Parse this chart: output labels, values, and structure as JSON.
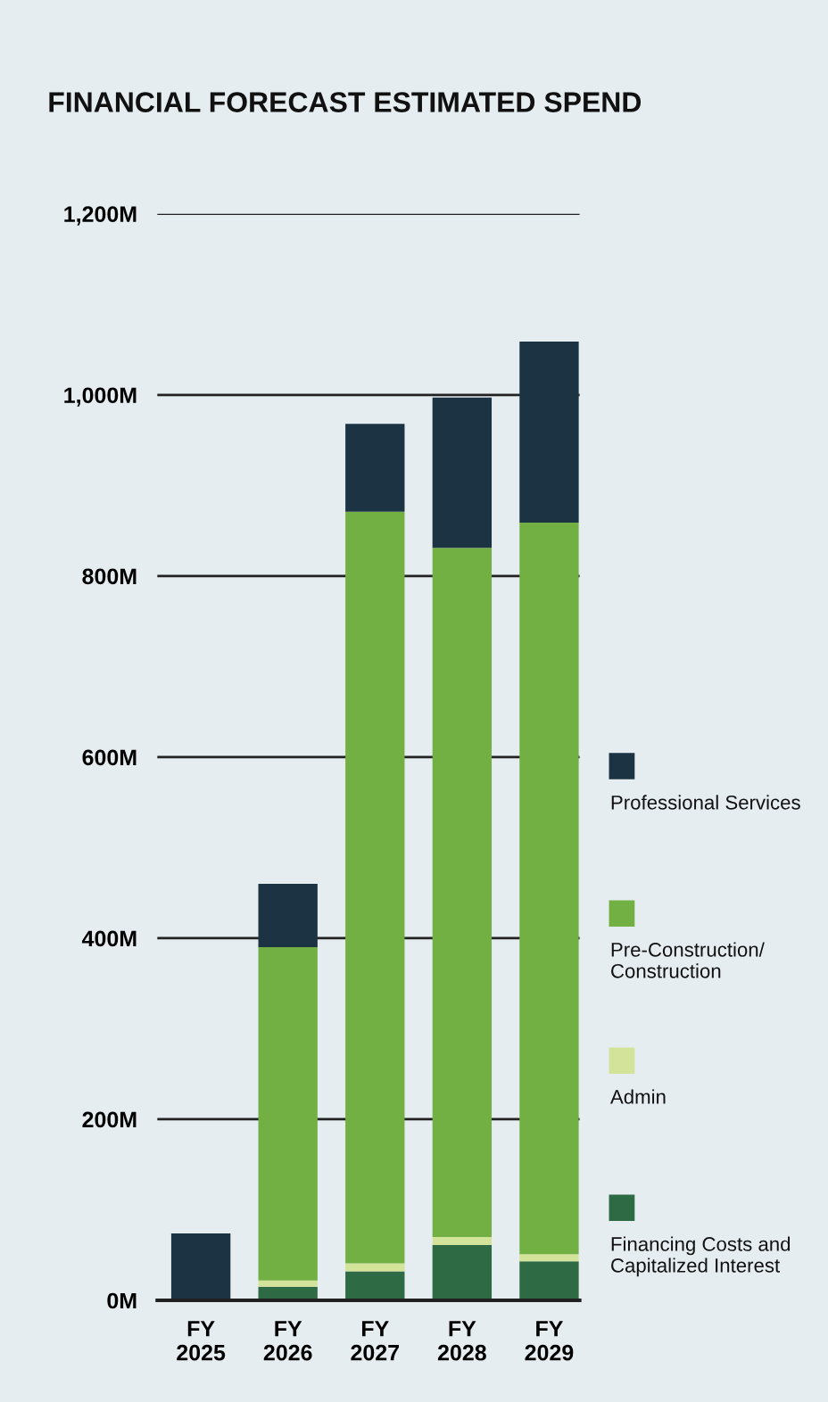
{
  "chart_data": {
    "type": "bar",
    "title": "FINANCIAL FORECAST ESTIMATED SPEND",
    "stacked": true,
    "categories": [
      "FY 2025",
      "FY 2026",
      "FY 2027",
      "FY 2028",
      "FY 2029"
    ],
    "series": [
      {
        "name": "Financing Costs and Capitalized Interest",
        "color": "#2e6b45",
        "values": [
          0,
          15,
          32,
          61,
          43
        ]
      },
      {
        "name": "Admin",
        "color": "#d4e39a",
        "values": [
          0,
          7,
          9,
          9,
          8
        ]
      },
      {
        "name": "Pre-Construction/ Construction",
        "color": "#72b043",
        "values": [
          0,
          368,
          830,
          761,
          808
        ]
      },
      {
        "name": "Professional Services",
        "color": "#1c3344",
        "values": [
          74,
          70,
          97,
          166,
          200
        ]
      }
    ],
    "ylim": [
      0,
      1200
    ],
    "yticks": [
      {
        "value": 0,
        "label": "0M"
      },
      {
        "value": 200,
        "label": "200M"
      },
      {
        "value": 400,
        "label": "400M"
      },
      {
        "value": 600,
        "label": "600M"
      },
      {
        "value": 800,
        "label": "800M"
      },
      {
        "value": 1000,
        "label": "1,000M"
      },
      {
        "value": 1200,
        "label": "1,200M"
      }
    ],
    "grid": "y",
    "legend": "right"
  }
}
